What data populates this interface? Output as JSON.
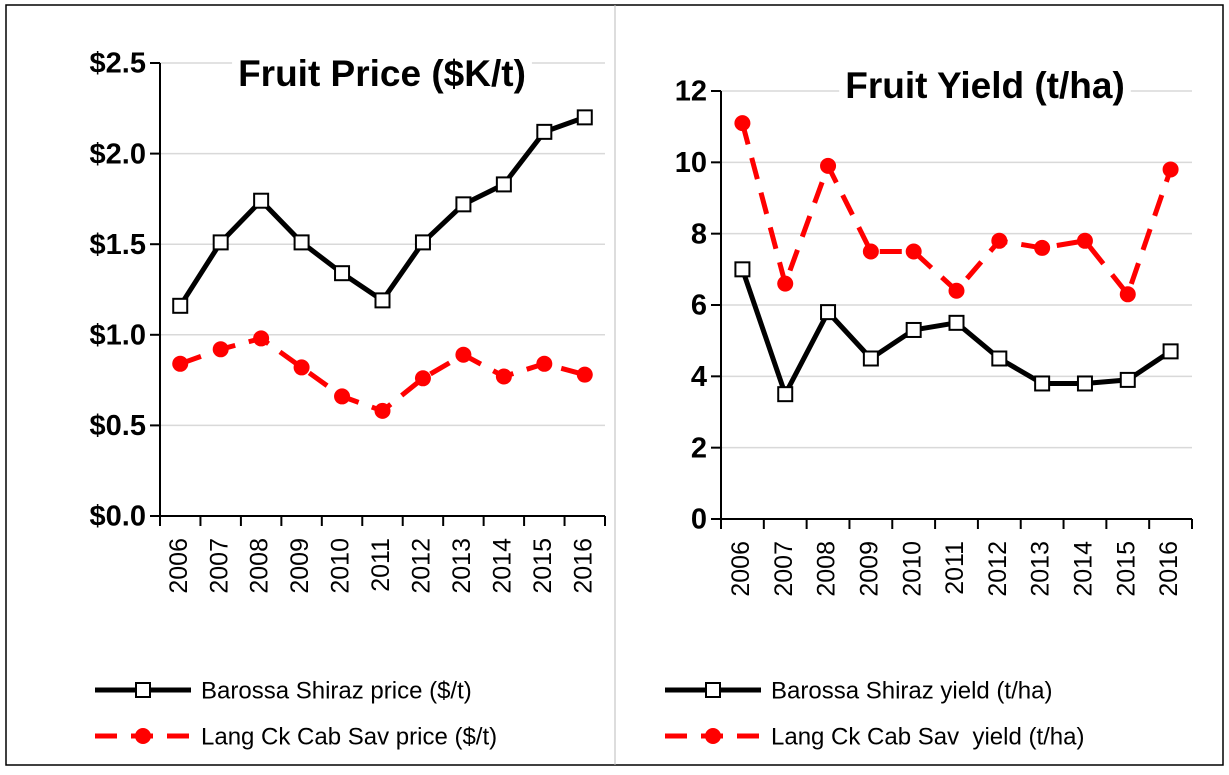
{
  "chart_data": [
    {
      "type": "line",
      "title": "Fruit Price ($K/t)",
      "categories": [
        "2006",
        "2007",
        "2008",
        "2009",
        "2010",
        "2011",
        "2012",
        "2013",
        "2014",
        "2015",
        "2016"
      ],
      "series": [
        {
          "name": "Barossa Shiraz price ($/t)",
          "color": "#000000",
          "linestyle": "solid",
          "marker": "square",
          "values": [
            1.16,
            1.51,
            1.74,
            1.51,
            1.34,
            1.19,
            1.51,
            1.72,
            1.83,
            2.12,
            2.2
          ]
        },
        {
          "name": "Lang Ck Cab Sav price ($/t)",
          "color": "#ff0000",
          "linestyle": "dashed",
          "marker": "circle",
          "values": [
            0.84,
            0.92,
            0.98,
            0.82,
            0.66,
            0.58,
            0.76,
            0.89,
            0.77,
            0.84,
            0.78
          ]
        }
      ],
      "ylim": [
        0,
        2.5
      ],
      "yticks": [
        {
          "value": 0,
          "label": "$0.0"
        },
        {
          "value": 0.5,
          "label": "$0.5"
        },
        {
          "value": 1,
          "label": "$1.0"
        },
        {
          "value": 1.5,
          "label": "$1.5"
        },
        {
          "value": 2,
          "label": "$2.0"
        },
        {
          "value": 2.5,
          "label": "$2.5"
        }
      ],
      "grid": true
    },
    {
      "type": "line",
      "title": "Fruit Yield (t/ha)",
      "categories": [
        "2006",
        "2007",
        "2008",
        "2009",
        "2010",
        "2011",
        "2012",
        "2013",
        "2014",
        "2015",
        "2016"
      ],
      "series": [
        {
          "name": "Barossa Shiraz yield (t/ha)",
          "color": "#000000",
          "linestyle": "solid",
          "marker": "square",
          "values": [
            7.0,
            3.5,
            5.8,
            4.5,
            5.3,
            5.5,
            4.5,
            3.8,
            3.8,
            3.9,
            4.7
          ]
        },
        {
          "name": "Lang Ck Cab Sav  yield (t/ha)",
          "color": "#ff0000",
          "linestyle": "dashed",
          "marker": "circle",
          "values": [
            11.1,
            6.6,
            9.9,
            7.5,
            7.5,
            6.4,
            7.8,
            7.6,
            7.8,
            6.3,
            9.8
          ]
        }
      ],
      "ylim": [
        0,
        12
      ],
      "yticks": [
        0,
        2,
        4,
        6,
        8,
        10,
        12
      ],
      "grid": true
    }
  ]
}
